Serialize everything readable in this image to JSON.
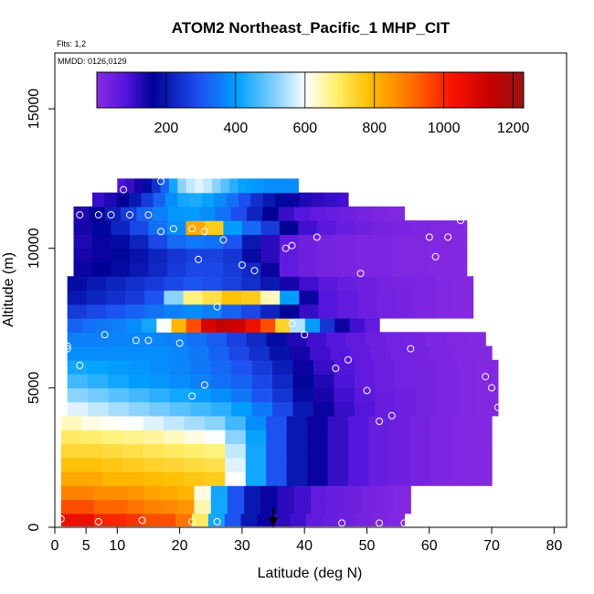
{
  "chart_data": {
    "type": "heatmap",
    "title": "ATOM2 Northeast_Pacific_1 MHP_CIT",
    "flights_note": "Flts: 1,2",
    "dates_note": "MMDD: 0126,0129",
    "xlabel": "Latitude (deg N)",
    "ylabel": "Altitude (m)",
    "xlim": [
      0,
      82
    ],
    "ylim": [
      0,
      17000
    ],
    "x_ticks": [
      0,
      5,
      10,
      20,
      30,
      40,
      50,
      60,
      70,
      80
    ],
    "y_ticks": [
      0,
      5000,
      10000,
      15000
    ],
    "colorbar": {
      "range": [
        0,
        1230
      ],
      "ticks": [
        200,
        400,
        600,
        800,
        1000,
        1200
      ]
    },
    "marker_latitude": 35,
    "altitude_bins": [
      {
        "alt": 300,
        "lat_min": 1,
        "lat_max": 56,
        "values": [
          1050,
          1050,
          1000,
          1000,
          980,
          950,
          950,
          900,
          700,
          420,
          300,
          200,
          150,
          120,
          100,
          60,
          50,
          40,
          30,
          20,
          10
        ]
      },
      {
        "alt": 750,
        "lat_min": 1,
        "lat_max": 57,
        "values": [
          950,
          950,
          920,
          920,
          900,
          880,
          870,
          850,
          650,
          420,
          300,
          200,
          150,
          120,
          100,
          60,
          50,
          40,
          30,
          20,
          10
        ]
      },
      {
        "alt": 1250,
        "lat_min": 1,
        "lat_max": 57,
        "values": [
          880,
          880,
          860,
          860,
          850,
          830,
          820,
          800,
          620,
          420,
          300,
          200,
          150,
          120,
          100,
          60,
          50,
          40,
          30,
          20,
          10
        ]
      },
      {
        "alt": 1750,
        "lat_min": 1,
        "lat_max": 70,
        "values": [
          820,
          820,
          800,
          800,
          790,
          780,
          770,
          760,
          600,
          420,
          300,
          200,
          150,
          110,
          80,
          50,
          40,
          30,
          20,
          15,
          10
        ]
      },
      {
        "alt": 2250,
        "lat_min": 1,
        "lat_max": 70,
        "values": [
          780,
          780,
          770,
          760,
          750,
          740,
          730,
          720,
          580,
          420,
          300,
          200,
          150,
          110,
          80,
          50,
          40,
          30,
          20,
          15,
          10
        ]
      },
      {
        "alt": 2750,
        "lat_min": 1,
        "lat_max": 70,
        "values": [
          740,
          740,
          730,
          720,
          710,
          700,
          690,
          680,
          560,
          420,
          300,
          200,
          150,
          110,
          80,
          50,
          40,
          30,
          20,
          15,
          10
        ]
      },
      {
        "alt": 3250,
        "lat_min": 1,
        "lat_max": 70,
        "values": [
          700,
          690,
          680,
          670,
          660,
          640,
          620,
          600,
          520,
          410,
          300,
          200,
          150,
          110,
          80,
          50,
          40,
          30,
          20,
          15,
          10
        ]
      },
      {
        "alt": 3750,
        "lat_min": 1,
        "lat_max": 70,
        "values": [
          640,
          620,
          610,
          600,
          580,
          560,
          540,
          520,
          460,
          380,
          300,
          200,
          150,
          110,
          80,
          50,
          40,
          30,
          20,
          15,
          10
        ]
      },
      {
        "alt": 4250,
        "lat_min": 2,
        "lat_max": 71,
        "values": [
          580,
          560,
          540,
          520,
          500,
          480,
          460,
          440,
          400,
          350,
          280,
          200,
          150,
          110,
          80,
          50,
          40,
          30,
          20,
          15,
          10
        ]
      },
      {
        "alt": 4750,
        "lat_min": 2,
        "lat_max": 71,
        "values": [
          520,
          500,
          480,
          460,
          440,
          420,
          400,
          380,
          350,
          300,
          250,
          180,
          140,
          100,
          70,
          50,
          40,
          30,
          20,
          15,
          10
        ]
      },
      {
        "alt": 5250,
        "lat_min": 2,
        "lat_max": 71,
        "values": [
          460,
          440,
          420,
          400,
          390,
          380,
          360,
          340,
          320,
          280,
          230,
          170,
          130,
          90,
          60,
          45,
          35,
          30,
          20,
          15,
          10
        ]
      },
      {
        "alt": 5750,
        "lat_min": 2,
        "lat_max": 71,
        "values": [
          420,
          410,
          400,
          390,
          380,
          370,
          350,
          330,
          300,
          260,
          210,
          150,
          110,
          80,
          60,
          45,
          35,
          30,
          20,
          15,
          10
        ]
      },
      {
        "alt": 6250,
        "lat_min": 2,
        "lat_max": 70,
        "values": [
          380,
          380,
          380,
          380,
          380,
          370,
          350,
          320,
          280,
          240,
          190,
          140,
          100,
          80,
          60,
          45,
          35,
          30,
          20,
          15,
          10
        ]
      },
      {
        "alt": 6750,
        "lat_min": 2,
        "lat_max": 69,
        "values": [
          360,
          360,
          370,
          370,
          370,
          360,
          340,
          310,
          270,
          230,
          180,
          130,
          100,
          80,
          60,
          45,
          35,
          30,
          20,
          15,
          10
        ]
      },
      {
        "alt": 7250,
        "lat_min": 2,
        "lat_max": 52,
        "values": [
          320,
          340,
          350,
          360,
          380,
          420,
          600,
          800,
          950,
          1100,
          1150,
          1120,
          1050,
          950,
          750,
          550,
          400,
          250,
          150,
          100,
          60
        ]
      },
      {
        "alt": 7750,
        "lat_min": 2,
        "lat_max": 67,
        "values": [
          260,
          280,
          300,
          320,
          340,
          360,
          380,
          360,
          320,
          280,
          220,
          160,
          110,
          80,
          60,
          45,
          35,
          30,
          20,
          15,
          10
        ]
      },
      {
        "alt": 8250,
        "lat_min": 2,
        "lat_max": 67,
        "values": [
          200,
          220,
          240,
          260,
          300,
          520,
          680,
          720,
          780,
          760,
          650,
          400,
          150,
          80,
          60,
          45,
          35,
          30,
          20,
          15,
          10
        ]
      },
      {
        "alt": 8750,
        "lat_min": 2,
        "lat_max": 67,
        "values": [
          180,
          200,
          220,
          240,
          260,
          280,
          300,
          290,
          270,
          240,
          200,
          140,
          100,
          70,
          50,
          40,
          30,
          25,
          20,
          15,
          10
        ]
      },
      {
        "alt": 9250,
        "lat_min": 3,
        "lat_max": 66,
        "values": [
          150,
          160,
          180,
          200,
          230,
          260,
          280,
          280,
          260,
          230,
          150,
          60,
          40,
          30,
          25,
          20,
          20,
          15,
          15,
          10,
          10
        ]
      },
      {
        "alt": 9750,
        "lat_min": 3,
        "lat_max": 66,
        "values": [
          140,
          150,
          170,
          190,
          220,
          250,
          270,
          270,
          250,
          180,
          120,
          60,
          40,
          30,
          25,
          20,
          20,
          15,
          15,
          10,
          10
        ]
      },
      {
        "alt": 10250,
        "lat_min": 3,
        "lat_max": 66,
        "values": [
          130,
          150,
          180,
          220,
          280,
          330,
          350,
          340,
          300,
          200,
          120,
          60,
          40,
          30,
          25,
          20,
          20,
          15,
          15,
          10,
          10
        ]
      },
      {
        "alt": 10750,
        "lat_min": 3,
        "lat_max": 66,
        "values": [
          140,
          170,
          220,
          280,
          340,
          380,
          820,
          760,
          400,
          330,
          260,
          160,
          100,
          70,
          50,
          40,
          30,
          25,
          20,
          15,
          10
        ]
      },
      {
        "alt": 11250,
        "lat_min": 3,
        "lat_max": 56,
        "values": [
          130,
          160,
          210,
          260,
          320,
          360,
          390,
          400,
          380,
          340,
          290,
          220,
          160,
          110,
          80,
          60,
          50,
          40,
          30,
          20,
          15
        ]
      },
      {
        "alt": 11750,
        "lat_min": 6,
        "lat_max": 47,
        "values": [
          110,
          130,
          160,
          200,
          260,
          320,
          380,
          420,
          430,
          410,
          380,
          340,
          290,
          240,
          200,
          170,
          150,
          130,
          120,
          110,
          100
        ]
      },
      {
        "alt": 12250,
        "lat_min": 10,
        "lat_max": 39,
        "values": [
          90,
          110,
          140,
          180,
          240,
          320,
          420,
          520,
          560,
          580,
          560,
          520,
          480,
          440,
          410,
          400,
          390,
          380,
          380,
          380,
          380
        ]
      }
    ],
    "sample_points": [
      {
        "lat": 1,
        "alt": 300
      },
      {
        "lat": 7,
        "alt": 200
      },
      {
        "lat": 14,
        "alt": 250
      },
      {
        "lat": 22,
        "alt": 200
      },
      {
        "lat": 26,
        "alt": 200
      },
      {
        "lat": 46,
        "alt": 150
      },
      {
        "lat": 52,
        "alt": 150
      },
      {
        "lat": 56,
        "alt": 150
      },
      {
        "lat": 69,
        "alt": 700
      },
      {
        "lat": 71,
        "alt": 4300
      },
      {
        "lat": 54,
        "alt": 4000
      },
      {
        "lat": 52,
        "alt": 3800
      },
      {
        "lat": 50,
        "alt": 4900
      },
      {
        "lat": 70,
        "alt": 5000
      },
      {
        "lat": 69,
        "alt": 5400
      },
      {
        "lat": 45,
        "alt": 5700
      },
      {
        "lat": 47,
        "alt": 6000
      },
      {
        "lat": 22,
        "alt": 4700
      },
      {
        "lat": 24,
        "alt": 5100
      },
      {
        "lat": 4,
        "alt": 5800
      },
      {
        "lat": 2,
        "alt": 6400
      },
      {
        "lat": 2,
        "alt": 6500
      },
      {
        "lat": 8,
        "alt": 6900
      },
      {
        "lat": 13,
        "alt": 6700
      },
      {
        "lat": 15,
        "alt": 6700
      },
      {
        "lat": 20,
        "alt": 6600
      },
      {
        "lat": 40,
        "alt": 6900
      },
      {
        "lat": 38,
        "alt": 7300
      },
      {
        "lat": 53,
        "alt": 7200
      },
      {
        "lat": 57,
        "alt": 6400
      },
      {
        "lat": 26,
        "alt": 7900
      },
      {
        "lat": 35,
        "alt": 8300
      },
      {
        "lat": 32,
        "alt": 9200
      },
      {
        "lat": 30,
        "alt": 9400
      },
      {
        "lat": 23,
        "alt": 9600
      },
      {
        "lat": 49,
        "alt": 9100
      },
      {
        "lat": 61,
        "alt": 9700
      },
      {
        "lat": 37,
        "alt": 10000
      },
      {
        "lat": 38,
        "alt": 10100
      },
      {
        "lat": 42,
        "alt": 10400
      },
      {
        "lat": 27,
        "alt": 10300
      },
      {
        "lat": 24,
        "alt": 10600
      },
      {
        "lat": 17,
        "alt": 10600
      },
      {
        "lat": 19,
        "alt": 10700
      },
      {
        "lat": 22,
        "alt": 10700
      },
      {
        "lat": 60,
        "alt": 10400
      },
      {
        "lat": 63,
        "alt": 10400
      },
      {
        "lat": 65,
        "alt": 11000
      },
      {
        "lat": 4,
        "alt": 11200
      },
      {
        "lat": 7,
        "alt": 11200
      },
      {
        "lat": 9,
        "alt": 11200
      },
      {
        "lat": 12,
        "alt": 11200
      },
      {
        "lat": 15,
        "alt": 11200
      },
      {
        "lat": 11,
        "alt": 12100
      },
      {
        "lat": 17,
        "alt": 12400
      }
    ]
  }
}
